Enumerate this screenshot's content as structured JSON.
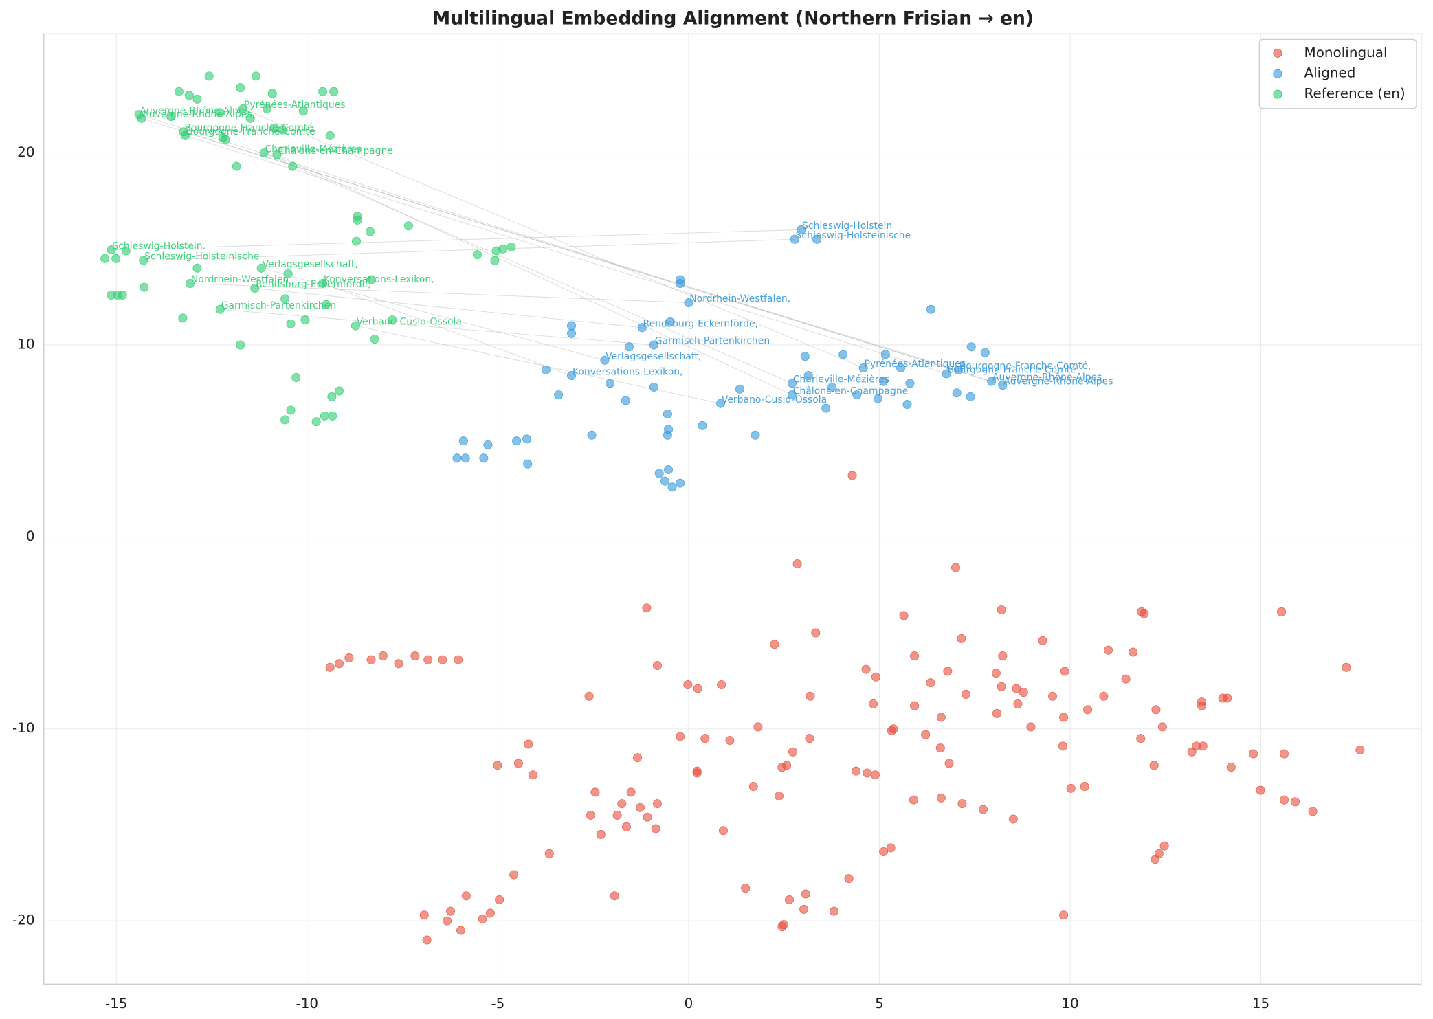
{
  "chart_data": {
    "type": "scatter",
    "title": "Multilingual Embedding Alignment (Northern Frisian → en)",
    "xlim": [
      -16.9,
      19.2
    ],
    "ylim": [
      -23.3,
      26.2
    ],
    "xticks": [
      -15,
      -10,
      -5,
      0,
      5,
      10,
      15
    ],
    "yticks": [
      -20,
      -10,
      0,
      10,
      20
    ],
    "grid": true,
    "legend": "upper right",
    "series": [
      {
        "name": "Monolingual",
        "color": "#e74c3c",
        "x": [
          -1.1,
          2.85,
          7.0,
          4.29,
          11.87,
          11.94,
          15.54,
          8.2,
          5.64,
          3.33,
          7.15,
          9.28,
          11.0,
          11.65,
          2.25,
          -0.82,
          5.92,
          8.23,
          6.34,
          6.79,
          8.06,
          9.86,
          11.46,
          4.65,
          4.91,
          -0.02,
          0.24,
          0.86,
          8.2,
          8.59,
          8.78,
          7.27,
          9.54,
          10.88,
          3.19,
          -2.61,
          9.83,
          4.84,
          5.92,
          8.63,
          12.25,
          10.46,
          8.08,
          6.62,
          14.12,
          14.0,
          13.45,
          13.45,
          12.42,
          8.97,
          1.82,
          5.37,
          5.32,
          -0.22,
          6.21,
          0.43,
          3.17,
          11.85,
          1.08,
          -4.2,
          9.81,
          6.6,
          13.31,
          13.48,
          13.19,
          14.8,
          15.61,
          2.73,
          -1.34,
          -5.01,
          -4.46,
          2.57,
          2.45,
          6.83,
          12.2,
          14.22,
          0.22,
          0.22,
          4.39,
          4.68,
          4.89,
          -4.08,
          1.7,
          10.38,
          10.02,
          14.99,
          -2.45,
          -1.51,
          2.37,
          6.62,
          5.9,
          15.61,
          15.9,
          7.17,
          -0.82,
          -1.75,
          7.72,
          16.36,
          -1.27,
          -2.57,
          -1.87,
          -1.08,
          8.51,
          -1.63,
          -0.86,
          -2.3,
          0.91,
          12.47,
          5.3,
          5.11,
          12.33,
          12.23,
          -3.65,
          -4.58,
          4.2,
          1.49,
          -1.94,
          -5.83,
          3.07,
          2.64,
          -4.96,
          3.02,
          -6.24,
          -5.2,
          3.81,
          9.83,
          -6.93,
          -5.4,
          -6.33,
          2.49,
          2.45,
          -5.97,
          -6.86,
          17.24,
          17.6,
          -9.4,
          -9.16,
          -8.9,
          -8.32,
          -8.01,
          -7.6,
          -7.17,
          -6.83,
          -6.45,
          -6.04
        ],
        "y": [
          -3.7,
          -1.4,
          -1.6,
          3.2,
          -3.9,
          -4.0,
          -3.9,
          -3.8,
          -4.1,
          -5.0,
          -5.3,
          -5.4,
          -5.9,
          -6.0,
          -5.6,
          -6.7,
          -6.2,
          -6.2,
          -7.6,
          -7.0,
          -7.1,
          -7.0,
          -7.4,
          -6.9,
          -7.3,
          -7.7,
          -7.9,
          -7.7,
          -7.8,
          -7.9,
          -8.1,
          -8.2,
          -8.3,
          -8.3,
          -8.3,
          -8.3,
          -9.4,
          -8.7,
          -8.8,
          -8.7,
          -9.0,
          -9.0,
          -9.2,
          -9.4,
          -8.4,
          -8.4,
          -8.6,
          -8.8,
          -9.9,
          -9.9,
          -9.9,
          -10.0,
          -10.1,
          -10.4,
          -10.3,
          -10.5,
          -10.5,
          -10.5,
          -10.6,
          -10.8,
          -10.9,
          -11.0,
          -10.9,
          -10.9,
          -11.2,
          -11.3,
          -11.3,
          -11.2,
          -11.5,
          -11.9,
          -11.8,
          -11.9,
          -12.0,
          -11.8,
          -11.9,
          -12.0,
          -12.2,
          -12.3,
          -12.2,
          -12.3,
          -12.4,
          -12.4,
          -13.0,
          -13.0,
          -13.1,
          -13.2,
          -13.3,
          -13.3,
          -13.5,
          -13.6,
          -13.7,
          -13.7,
          -13.8,
          -13.9,
          -13.9,
          -13.9,
          -14.2,
          -14.3,
          -14.1,
          -14.5,
          -14.5,
          -14.6,
          -14.7,
          -15.1,
          -15.2,
          -15.5,
          -15.3,
          -16.1,
          -16.2,
          -16.4,
          -16.5,
          -16.8,
          -16.5,
          -17.6,
          -17.8,
          -18.3,
          -18.7,
          -18.7,
          -18.6,
          -18.9,
          -18.9,
          -19.4,
          -19.5,
          -19.6,
          -19.5,
          -19.7,
          -19.7,
          -19.9,
          -20.0,
          -20.2,
          -20.3,
          -20.5,
          -21.0,
          -6.8,
          -11.1,
          -6.8,
          -6.6,
          -6.3,
          -6.4,
          -6.2,
          -6.6,
          -6.2,
          -6.4,
          -6.4,
          -6.4
        ]
      },
      {
        "name": "Aligned",
        "color": "#3498db",
        "x": [
          2.95,
          2.78,
          0,
          -1.22,
          -0.91,
          -2.2,
          -3.07,
          4.58,
          7.07,
          6.76,
          7.94,
          8.23,
          2.71,
          2.71,
          0.84,
          -0.22,
          -0.22,
          -3.07,
          -3.07,
          -0.48,
          -1.56,
          3.05,
          4.05,
          5.16,
          7.41,
          7.77,
          -3.74,
          3.14,
          5.56,
          -2.06,
          -0.91,
          1.34,
          3.76,
          5.11,
          5.8,
          -3.41,
          -1.65,
          4.41,
          4.96,
          7.03,
          7.39,
          5.73,
          3.6,
          -0.55,
          -0.53,
          -0.55,
          0.36,
          -2.54,
          1.75,
          -5.9,
          -5.26,
          -4.51,
          -4.24,
          -6.07,
          -5.85,
          -5.37,
          -4.22,
          -0.77,
          -0.53,
          -0.62,
          -0.22,
          -0.43,
          6.35,
          3.36
        ],
        "y": [
          16.0,
          15.5,
          12.2,
          10.9,
          10.0,
          9.2,
          8.4,
          8.8,
          8.7,
          8.5,
          8.1,
          7.9,
          8.0,
          7.4,
          6.95,
          13.4,
          13.2,
          11.0,
          10.6,
          11.2,
          9.9,
          9.4,
          9.5,
          9.5,
          9.9,
          9.6,
          8.7,
          8.4,
          8.8,
          8.0,
          7.8,
          7.7,
          7.8,
          8.1,
          8.0,
          7.4,
          7.1,
          7.4,
          7.2,
          7.5,
          7.3,
          6.9,
          6.7,
          6.4,
          5.6,
          5.3,
          5.8,
          5.3,
          5.3,
          5.0,
          4.8,
          5.0,
          5.1,
          4.1,
          4.1,
          4.1,
          3.8,
          3.3,
          3.5,
          2.9,
          2.8,
          2.6,
          11.85,
          15.5
        ],
        "labels": [
          "Schleswig-Holstein",
          "Schleswig-Holsteinische",
          "Nordrhein-Westfalen,",
          "Rendsburg-Eckernförde,",
          "Garmisch-Partenkirchen",
          "Verlagsgesellschaft,",
          "Konversations-Lexikon,",
          "Pyrénées-Atlantiques",
          "Bourgogne-Franche-Comté,",
          "Bourgogne-Franche-Comté",
          "Auvergne-Rhône-Alpes,",
          "Auvergne-Rhône-Alpes",
          "Charleville-Mézières",
          "Châlons-en-Champagne",
          "Verbano-Cusio-Ossola",
          null,
          null,
          null,
          null,
          null,
          null,
          null,
          null,
          null,
          null,
          null,
          null,
          null,
          null,
          null,
          null,
          null,
          null,
          null,
          null,
          null,
          null,
          null,
          null,
          null,
          null,
          null,
          null,
          null,
          null,
          null,
          null,
          null,
          null,
          null,
          null,
          null,
          null,
          null,
          null,
          null,
          null,
          null,
          null,
          null,
          null,
          null,
          null,
          null
        ]
      },
      {
        "name": "Reference (en)",
        "color": "#2ecc71",
        "x": [
          -15.13,
          -14.29,
          -13.07,
          -11.37,
          -12.28,
          -11.2,
          -9.59,
          -11.68,
          -13.24,
          -13.19,
          -14.34,
          -14.41,
          -11.13,
          -10.79,
          -8.73,
          -12.57,
          -11.34,
          -13.36,
          -13.09,
          -12.88,
          -11.75,
          -10.91,
          -9.59,
          -9.3,
          -11.05,
          -10.1,
          -13.57,
          -12.28,
          -11.49,
          -10.86,
          -10.65,
          -9.4,
          -12.21,
          -12.14,
          -11.85,
          -10.38,
          -8.68,
          -8.68,
          -7.34,
          -8.35,
          -8.71,
          -4.65,
          -4.87,
          -5.04,
          -5.54,
          -5.08,
          -14.75,
          -15.01,
          -15.3,
          -12.88,
          -10.5,
          -8.32,
          -14.27,
          -15.13,
          -14.96,
          -14.84,
          -10.58,
          -9.5,
          -13.26,
          -10.05,
          -10.43,
          -7.77,
          -8.23,
          -11.75,
          -10.29,
          -9.16,
          -9.35,
          -10.43,
          -9.54,
          -9.33,
          -10.58,
          -9.76
        ],
        "y": [
          14.95,
          14.4,
          13.2,
          12.95,
          11.85,
          14.0,
          13.2,
          22.3,
          21.1,
          20.9,
          21.8,
          22.0,
          20.0,
          19.9,
          11.0,
          24.0,
          24.0,
          23.2,
          23.0,
          22.8,
          23.4,
          23.1,
          23.2,
          23.2,
          22.3,
          22.2,
          21.9,
          22.1,
          21.8,
          21.3,
          21.2,
          20.9,
          20.8,
          20.7,
          19.3,
          19.3,
          16.7,
          16.5,
          16.2,
          15.9,
          15.4,
          15.1,
          15.0,
          14.9,
          14.7,
          14.4,
          14.9,
          14.5,
          14.5,
          14.0,
          13.7,
          13.4,
          13.0,
          12.6,
          12.6,
          12.6,
          12.4,
          12.1,
          11.4,
          11.3,
          11.1,
          11.3,
          10.3,
          10.0,
          8.3,
          7.6,
          7.3,
          6.6,
          6.3,
          6.3,
          6.1,
          6.0
        ],
        "labels": [
          "Schleswig-Holstein.",
          "Schleswig-Holsteinische",
          "Nordrhein-Westfalen",
          "Rendsburg-Eckernförde,",
          "Garmisch-Partenkirchen",
          "Verlagsgesellschaft,",
          "Konversations-Lexikon,",
          "Pyrénées-Atlantiques",
          "Bourgogne-Franche-Comté,",
          "Bourgogne-Franche-Comté",
          "Auvergne-Rhône-Alpes,",
          "Auvergne-Rhône-Alpes",
          "Charleville-Mézières",
          "Châlons-en-Champagne",
          "Verbano-Cusio-Ossola",
          null,
          null,
          null,
          null,
          null,
          null,
          null,
          null,
          null,
          null,
          null,
          null,
          null,
          null,
          null,
          null,
          null,
          null,
          null,
          null,
          null,
          null,
          null,
          null,
          null,
          null,
          null,
          null,
          null,
          null,
          null,
          null,
          null,
          null,
          null,
          null,
          null,
          null,
          null,
          null,
          null,
          null,
          null,
          null,
          null,
          null,
          null,
          null,
          null,
          null,
          null,
          null,
          null,
          null,
          null,
          null,
          null
        ]
      }
    ]
  }
}
